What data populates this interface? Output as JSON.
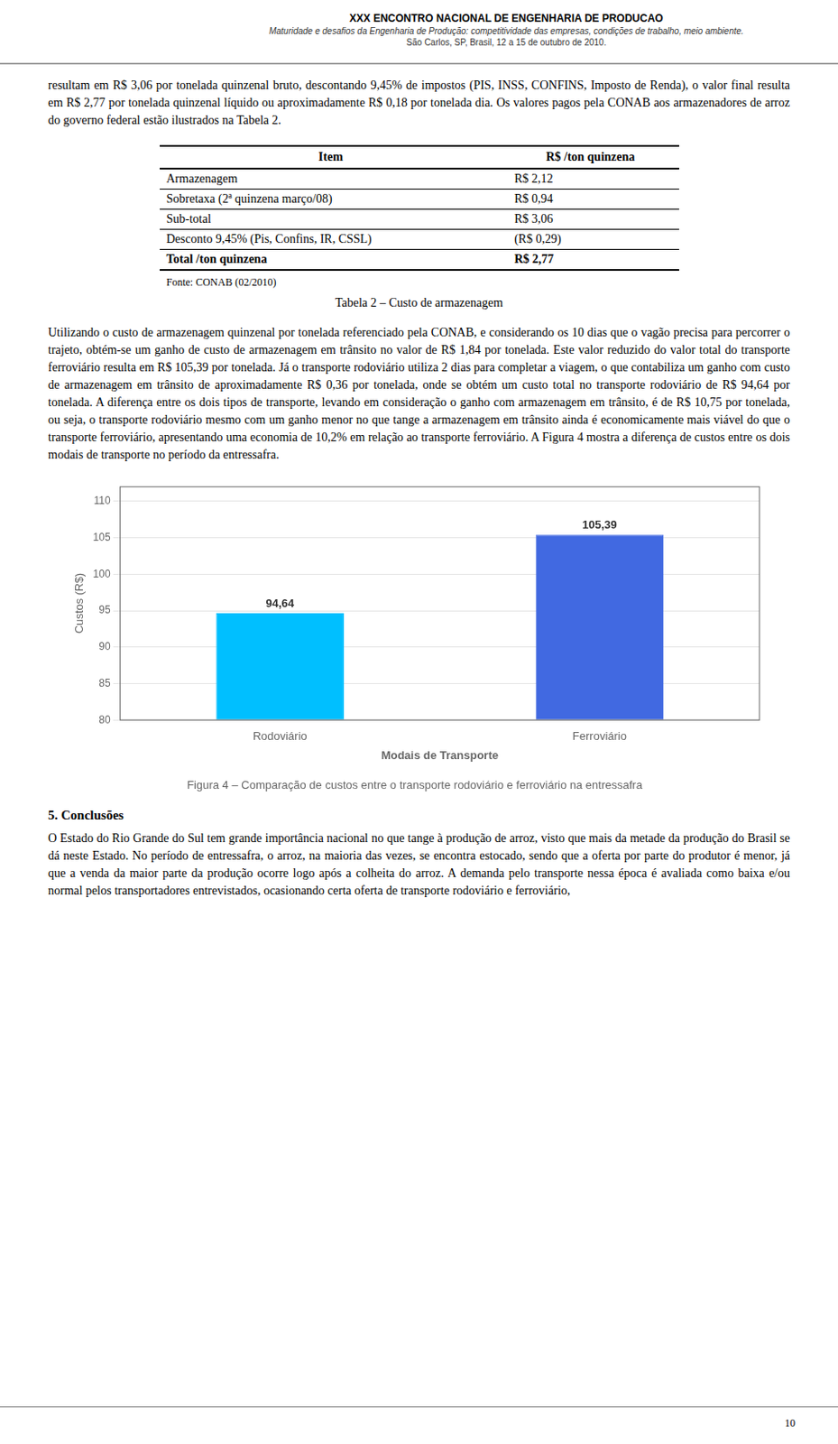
{
  "header": {
    "title": "XXX ENCONTRO NACIONAL DE ENGENHARIA DE PRODUCAO",
    "subtitle": "Maturidade e desafios da Engenharia de Produção: competitividade das empresas, condições de trabalho, meio ambiente.",
    "location": "São Carlos, SP, Brasil, 12 a 15 de outubro de 2010."
  },
  "para1": "resultam em R$ 3,06 por tonelada quinzenal bruto, descontando 9,45% de impostos (PIS, INSS, CONFINS, Imposto de Renda), o valor final resulta em R$ 2,77 por tonelada quinzenal líquido ou aproximadamente R$ 0,18 por tonelada dia. Os valores pagos pela CONAB aos armazenadores de arroz do governo federal estão ilustrados na Tabela 2.",
  "table": {
    "title": "Tabela 2 – Custo de armazenagem",
    "columns": [
      "Item",
      "R$ /ton quinzena"
    ],
    "rows": [
      [
        "Armazenagem",
        "R$ 2,12"
      ],
      [
        "Sobretaxa (2ª quinzena março/08)",
        "R$ 0,94"
      ],
      [
        "Sub-total",
        "R$ 3,06"
      ],
      [
        "Desconto 9,45% (Pis, Confins, IR, CSSL)",
        "(R$ 0,29)"
      ],
      [
        "Total /ton quinzena",
        "R$ 2,77"
      ]
    ],
    "source": "Fonte: CONAB (02/2010)"
  },
  "para2": "Utilizando o custo de armazenagem quinzenal por tonelada referenciado pela CONAB, e considerando os 10 dias que o vagão precisa para percorrer o trajeto, obtém-se um ganho de custo de armazenagem em trânsito no valor de R$ 1,84 por tonelada. Este valor reduzido do valor total do transporte ferroviário resulta em R$ 105,39 por tonelada. Já o transporte rodoviário utiliza 2 dias para completar a viagem, o que contabiliza um ganho com custo de armazenagem em trânsito de aproximadamente R$ 0,36 por tonelada, onde se obtém um custo total no transporte rodoviário de R$ 94,64 por tonelada. A diferença entre os dois tipos de transporte, levando em consideração o ganho com armazenagem em trânsito, é de R$ 10,75 por tonelada, ou seja, o transporte rodoviário mesmo com um ganho menor no que tange a armazenagem em trânsito ainda é economicamente mais viável do que o transporte ferroviário, apresentando uma economia de 10,2% em relação ao transporte ferroviário. A Figura 4 mostra a diferença de custos entre os dois modais de transporte no período da entressafra.",
  "chart_data": {
    "type": "bar",
    "title": "Figura 4 – Comparação de custos entre o transporte rodoviário e ferroviário na entressafra",
    "x_label": "Modais de Transporte",
    "y_label": "Custos (R$)",
    "categories": [
      "Rodoviário",
      "Ferroviário"
    ],
    "values": [
      94.64,
      105.39
    ],
    "value_labels": [
      "94,64",
      "105,39"
    ],
    "data_labels": true,
    "colors": [
      "#00bfff",
      "#4169e1"
    ],
    "ylim": [
      80,
      112
    ],
    "yticks": [
      80,
      85,
      90,
      95,
      100,
      105,
      110
    ],
    "grid": true
  },
  "para3_title": "5. Conclusões",
  "para3": "O Estado do Rio Grande do Sul tem grande importância nacional no que tange à produção de arroz, visto que mais da metade da produção do Brasil se dá neste Estado. No período de entressafra, o arroz, na maioria das vezes, se encontra estocado, sendo que a oferta por parte do produtor é menor, já que a venda da maior parte da produção ocorre logo após a colheita do arroz. A demanda pelo transporte nessa época é avaliada como baixa e/ou normal pelos transportadores entrevistados, ocasionando certa oferta de transporte rodoviário e ferroviário,",
  "footer_page": "10"
}
